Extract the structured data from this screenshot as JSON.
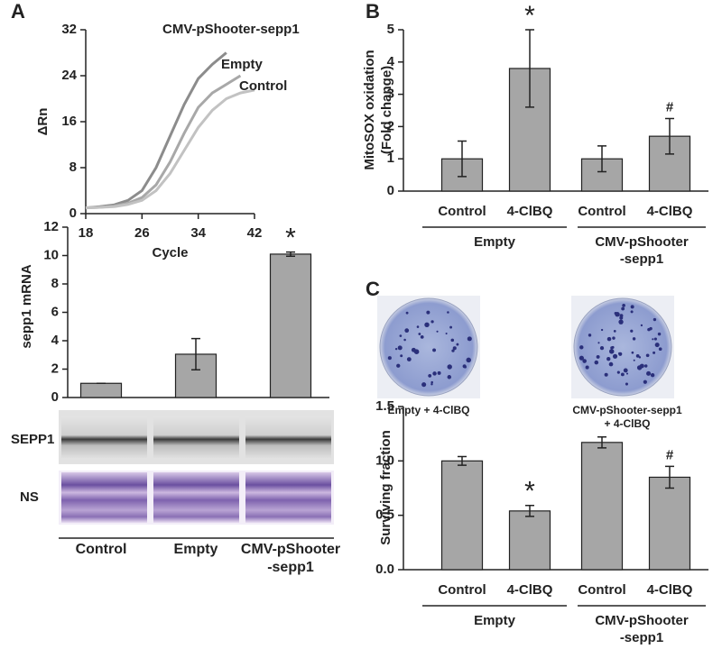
{
  "panel_labels": [
    "A",
    "B",
    "C"
  ],
  "blots": {
    "labels": [
      "SEPP1",
      "NS"
    ]
  },
  "plates": {
    "captions": [
      "Empty + 4-ClBQ",
      "CMV-pShooter-sepp1\n+ 4-ClBQ"
    ]
  },
  "chart_data": [
    {
      "type": "line",
      "x_label": "Cycle",
      "y_label": "ΔRn",
      "x": [
        18,
        20,
        22,
        24,
        26,
        28,
        30,
        32,
        34,
        36,
        38,
        40,
        42
      ],
      "series": [
        {
          "name": "CMV-pShooter-sepp1",
          "color": "#8c8c8c",
          "values": [
            1,
            1.2,
            1.5,
            2.3,
            4,
            8,
            13.5,
            19,
            23.5,
            26,
            28,
            null,
            null
          ]
        },
        {
          "name": "Empty",
          "color": "#a8a8a8",
          "values": [
            1,
            1.1,
            1.3,
            1.8,
            2.8,
            5,
            9,
            14,
            18.5,
            21,
            22.5,
            24,
            null
          ]
        },
        {
          "name": "Control",
          "color": "#c2c2c2",
          "values": [
            1,
            1.1,
            1.2,
            1.6,
            2.3,
            4,
            7,
            11,
            15,
            18,
            20,
            21,
            21.5
          ]
        }
      ],
      "xlim": [
        18,
        42
      ],
      "xticks": [
        18,
        26,
        34,
        42
      ],
      "ylim": [
        0,
        32
      ],
      "yticks": [
        0,
        8,
        16,
        24,
        32
      ]
    },
    {
      "type": "bar",
      "y_label": "sepp1 mRNA",
      "color": "#a6a6a6",
      "categories": [
        "Control",
        "Empty",
        "CMV-pShooter\n-sepp1"
      ],
      "values": [
        1,
        3.05,
        10.1
      ],
      "errors": [
        0,
        1.1,
        0.15
      ],
      "bar_annotations": [
        null,
        null,
        "*"
      ],
      "ylim": [
        0,
        12
      ],
      "yticks": [
        0,
        2,
        4,
        6,
        8,
        10,
        12
      ]
    },
    {
      "type": "bar",
      "y_label": "MitoSOX oxidation\n(Fold change)",
      "color": "#a6a6a6",
      "categories": [
        "Control",
        "4-ClBQ",
        "Control",
        "4-ClBQ"
      ],
      "groups": [
        "Empty",
        "CMV-pShooter\n-sepp1"
      ],
      "values": [
        1,
        3.8,
        1,
        1.7
      ],
      "errors": [
        0.55,
        1.2,
        0.4,
        0.55
      ],
      "bar_annotations": [
        null,
        "*",
        null,
        "#"
      ],
      "ylim": [
        0,
        5
      ],
      "yticks": [
        0,
        1,
        2,
        3,
        4,
        5
      ]
    },
    {
      "type": "bar",
      "y_label": "Surviving fraction",
      "color": "#a6a6a6",
      "categories": [
        "Control",
        "4-ClBQ",
        "Control",
        "4-ClBQ"
      ],
      "groups": [
        "Empty",
        "CMV-pShooter\n-sepp1"
      ],
      "values": [
        1.0,
        0.54,
        1.17,
        0.85
      ],
      "errors": [
        0.04,
        0.05,
        0.05,
        0.1
      ],
      "bar_annotations": [
        null,
        "*",
        null,
        "#"
      ],
      "ylim": [
        0,
        1.5
      ],
      "yticks": [
        {
          "value": 0,
          "label": "0.0"
        },
        0.5,
        {
          "value": 1,
          "label": "1.0"
        },
        1.5
      ]
    }
  ]
}
